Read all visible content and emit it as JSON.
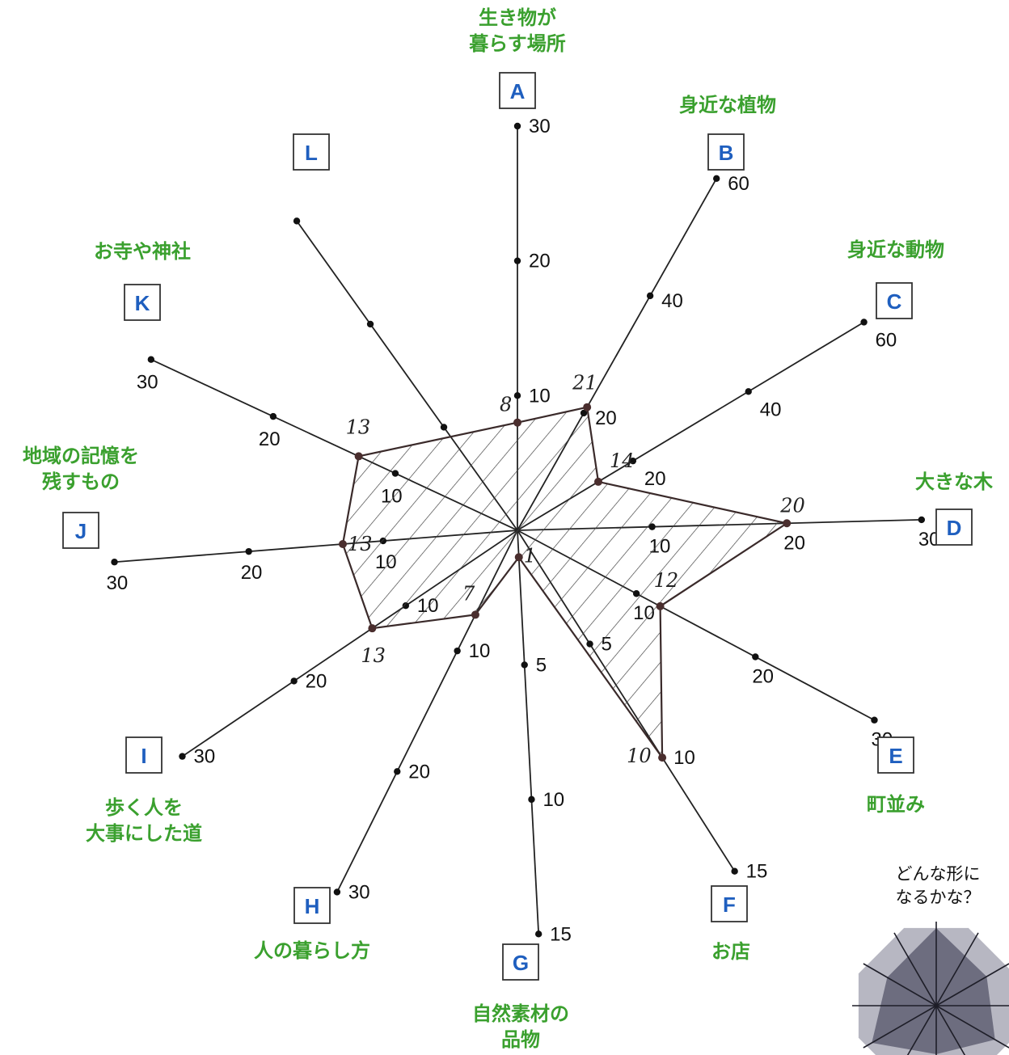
{
  "chart_data": {
    "type": "radar",
    "axes": [
      {
        "letter": "A",
        "label": [
          "生き物が",
          "暮らす場所"
        ],
        "max": 30,
        "ticks": [
          10,
          20,
          30
        ],
        "value": 8
      },
      {
        "letter": "B",
        "label": [
          "身近な植物"
        ],
        "max": 60,
        "ticks": [
          20,
          40,
          60
        ],
        "value": 21
      },
      {
        "letter": "C",
        "label": [
          "身近な動物"
        ],
        "max": 60,
        "ticks": [
          20,
          40,
          60
        ],
        "value": 14
      },
      {
        "letter": "D",
        "label": [
          "大きな木"
        ],
        "max": 30,
        "ticks": [
          10,
          20,
          30
        ],
        "value": 20
      },
      {
        "letter": "E",
        "label": [
          "町並み"
        ],
        "max": 30,
        "ticks": [
          10,
          20,
          30
        ],
        "value": 12
      },
      {
        "letter": "F",
        "label": [
          "お店"
        ],
        "max": 15,
        "ticks": [
          5,
          10,
          15
        ],
        "value": 10
      },
      {
        "letter": "G",
        "label": [
          "自然素材の",
          "品物"
        ],
        "max": 15,
        "ticks": [
          5,
          10,
          15
        ],
        "value": 1
      },
      {
        "letter": "H",
        "label": [
          "人の暮らし方"
        ],
        "max": 30,
        "ticks": [
          10,
          20,
          30
        ],
        "value": 7
      },
      {
        "letter": "I",
        "label": [
          "歩く人を",
          "大事にした道"
        ],
        "max": 30,
        "ticks": [
          10,
          20,
          30
        ],
        "value": 13
      },
      {
        "letter": "J",
        "label": [
          "地域の記憶を",
          "残すもの"
        ],
        "max": 30,
        "ticks": [
          10,
          20,
          30
        ],
        "value": 13
      },
      {
        "letter": "K",
        "label": [
          "お寺や神社"
        ],
        "max": 30,
        "ticks": [
          10,
          20,
          30
        ],
        "value": 13
      },
      {
        "letter": "L",
        "label": [],
        "max": 30,
        "ticks": [],
        "value": null
      }
    ],
    "value_labels": [
      "8",
      "21",
      "14",
      "20",
      "12",
      "10",
      "1",
      "7",
      "13",
      "13",
      "13",
      ""
    ],
    "colors": {
      "category": "#3aa02e",
      "letter": "#1f5fbf",
      "polygon": "#3a2a2a"
    }
  },
  "note": {
    "lines": [
      "どんな形に",
      "なるかな？"
    ]
  }
}
